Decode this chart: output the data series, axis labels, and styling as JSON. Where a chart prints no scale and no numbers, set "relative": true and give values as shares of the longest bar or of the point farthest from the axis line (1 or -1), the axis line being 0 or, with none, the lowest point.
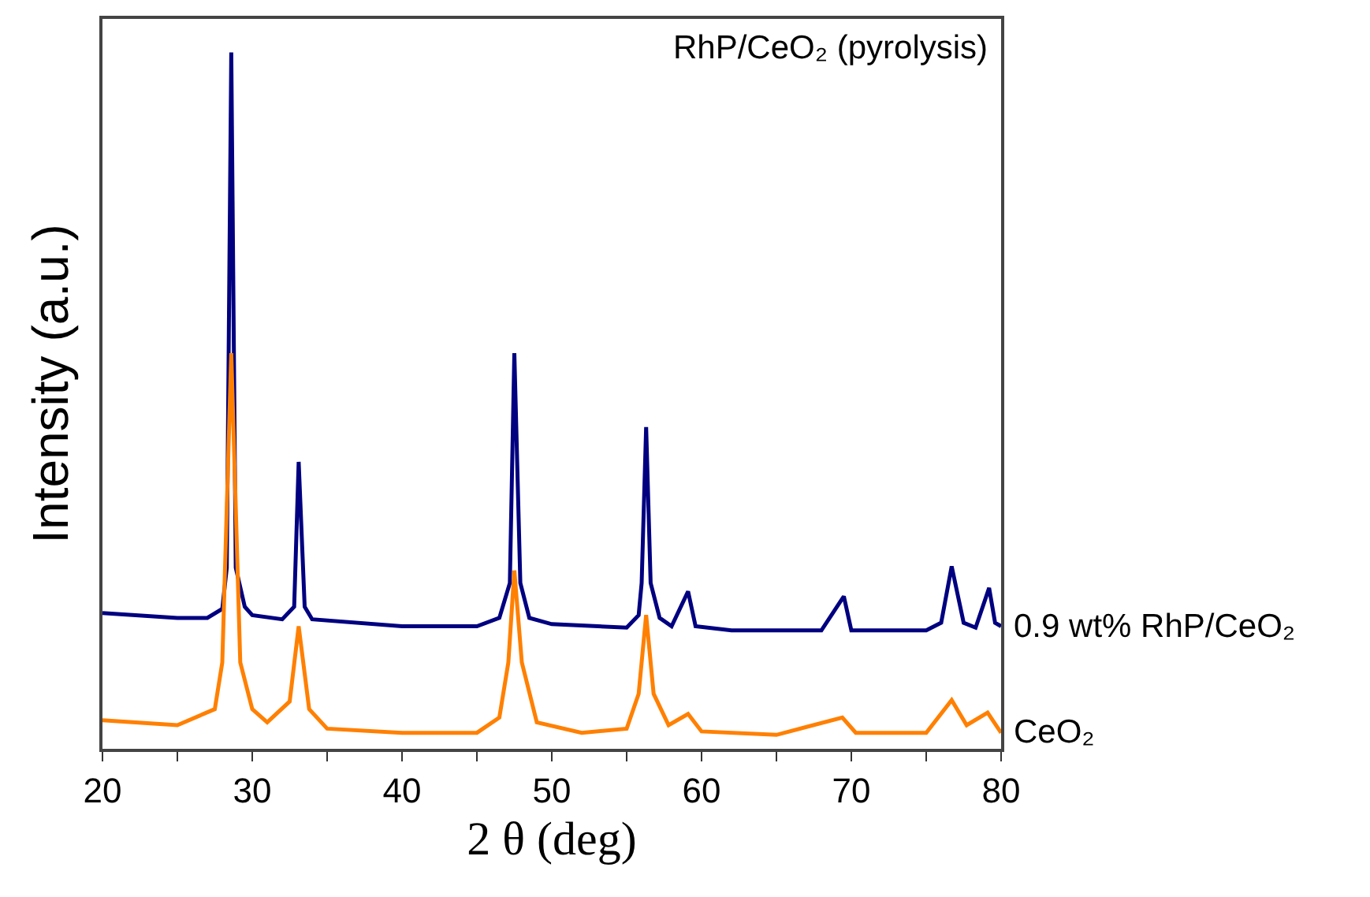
{
  "chart_data": {
    "type": "line",
    "relative": true,
    "xlabel": "2 θ (deg)",
    "ylabel": "Intensity (a.u.)",
    "annotations": [
      "RhP/CeO₂ (pyrolysis)"
    ],
    "xlim": [
      20,
      80
    ],
    "xticks": [
      20,
      {
        "value": 25,
        "label": null
      },
      30,
      {
        "value": 35,
        "label": null
      },
      40,
      {
        "value": 45,
        "label": null
      },
      50,
      {
        "value": 55,
        "label": null
      },
      60,
      {
        "value": 65,
        "label": null
      },
      70,
      {
        "value": 75,
        "label": null
      },
      80
    ],
    "grid": false,
    "legend": false,
    "marker": "none",
    "line_style": "solid",
    "series": [
      {
        "name": "0.9 wt% RhP/CeO₂",
        "color": "#000080",
        "x": [
          20,
          25,
          27,
          28,
          28.3,
          28.6,
          28.9,
          29.5,
          30,
          32,
          32.8,
          33.1,
          33.5,
          34,
          40,
          45,
          46.5,
          47.2,
          47.5,
          47.9,
          48.5,
          50,
          55,
          55.8,
          56,
          56.3,
          56.6,
          57.2,
          58,
          59.1,
          59.6,
          62,
          68,
          69.5,
          70,
          75,
          76,
          76.7,
          77.5,
          78.3,
          79.2,
          79.6,
          80
        ],
        "values": [
          0.195,
          0.188,
          0.188,
          0.201,
          0.26,
          1,
          0.26,
          0.204,
          0.192,
          0.186,
          0.204,
          0.412,
          0.204,
          0.186,
          0.176,
          0.176,
          0.188,
          0.238,
          0.568,
          0.238,
          0.188,
          0.179,
          0.174,
          0.192,
          0.238,
          0.462,
          0.238,
          0.188,
          0.176,
          0.226,
          0.176,
          0.17,
          0.17,
          0.219,
          0.17,
          0.17,
          0.181,
          0.262,
          0.181,
          0.174,
          0.231,
          0.181,
          0.176
        ]
      },
      {
        "name": "CeO₂",
        "color": "#ff8000",
        "x": [
          20,
          25,
          27.5,
          28,
          28.6,
          29.2,
          30,
          31,
          32.5,
          33.1,
          33.8,
          35,
          40,
          45,
          46.5,
          47.1,
          47.5,
          48,
          49,
          52,
          55,
          55.8,
          56.3,
          56.8,
          57.8,
          59.1,
          60,
          65,
          69.4,
          70.3,
          75,
          76.7,
          77.7,
          79.1,
          80
        ],
        "values": [
          0.041,
          0.034,
          0.057,
          0.124,
          0.568,
          0.124,
          0.057,
          0.038,
          0.068,
          0.176,
          0.057,
          0.029,
          0.023,
          0.023,
          0.045,
          0.124,
          0.256,
          0.124,
          0.038,
          0.023,
          0.029,
          0.079,
          0.192,
          0.079,
          0.034,
          0.05,
          0.025,
          0.02,
          0.045,
          0.023,
          0.023,
          0.07,
          0.034,
          0.052,
          0.023
        ]
      }
    ]
  }
}
